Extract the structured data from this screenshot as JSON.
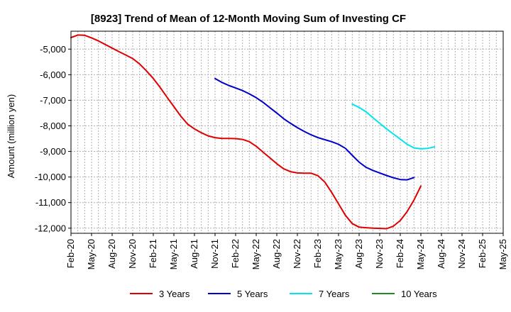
{
  "chart_data": {
    "type": "line",
    "title": "[8923]  Trend of Mean of 12-Month Moving Sum of Investing CF",
    "xlabel": "",
    "ylabel": "Amount (million yen)",
    "ylim": [
      -12200,
      -4300
    ],
    "yticks": [
      -5000,
      -6000,
      -7000,
      -8000,
      -9000,
      -10000,
      -11000,
      -12000
    ],
    "ytick_labels": [
      "-5,000",
      "-6,000",
      "-7,000",
      "-8,000",
      "-9,000",
      "-10,000",
      "-11,000",
      "-12,000"
    ],
    "xticks": [
      "Feb-20",
      "May-20",
      "Aug-20",
      "Nov-20",
      "Feb-21",
      "May-21",
      "Aug-21",
      "Nov-21",
      "Feb-22",
      "May-22",
      "Aug-22",
      "Nov-22",
      "Feb-23",
      "May-23",
      "Aug-23",
      "Nov-23",
      "Feb-24",
      "May-24",
      "Aug-24",
      "Nov-24",
      "Feb-25",
      "May-25"
    ],
    "grid": true,
    "legend_position": "bottom",
    "series": [
      {
        "name": "3 Years",
        "color": "#e00000",
        "start_index": 0,
        "values": [
          -4550,
          -4450,
          -4460,
          -4560,
          -4680,
          -4820,
          -4960,
          -5100,
          -5230,
          -5370,
          -5580,
          -5850,
          -6150,
          -6500,
          -6880,
          -7250,
          -7620,
          -7930,
          -8120,
          -8270,
          -8390,
          -8460,
          -8490,
          -8490,
          -8500,
          -8530,
          -8620,
          -8800,
          -9030,
          -9250,
          -9480,
          -9680,
          -9790,
          -9840,
          -9850,
          -9850,
          -9950,
          -10200,
          -10600,
          -11050,
          -11500,
          -11820,
          -11960,
          -11980,
          -12000,
          -12010,
          -12020,
          -11920,
          -11700,
          -11350,
          -10900,
          -10350
        ]
      },
      {
        "name": "5 Years",
        "color": "#0000cc",
        "start_index": 21,
        "values": [
          -6150,
          -6300,
          -6420,
          -6520,
          -6620,
          -6750,
          -6900,
          -7080,
          -7290,
          -7500,
          -7720,
          -7900,
          -8070,
          -8220,
          -8350,
          -8460,
          -8540,
          -8620,
          -8720,
          -8880,
          -9150,
          -9420,
          -9620,
          -9740,
          -9840,
          -9940,
          -10030,
          -10100,
          -10110,
          -10020
        ]
      },
      {
        "name": "7 Years",
        "color": "#00e5ee",
        "start_index": 41,
        "values": [
          -7150,
          -7280,
          -7450,
          -7680,
          -7900,
          -8120,
          -8320,
          -8520,
          -8720,
          -8860,
          -8900,
          -8880,
          -8820
        ]
      },
      {
        "name": "10 Years",
        "color": "#228b22",
        "start_index": 0,
        "values": []
      }
    ]
  }
}
